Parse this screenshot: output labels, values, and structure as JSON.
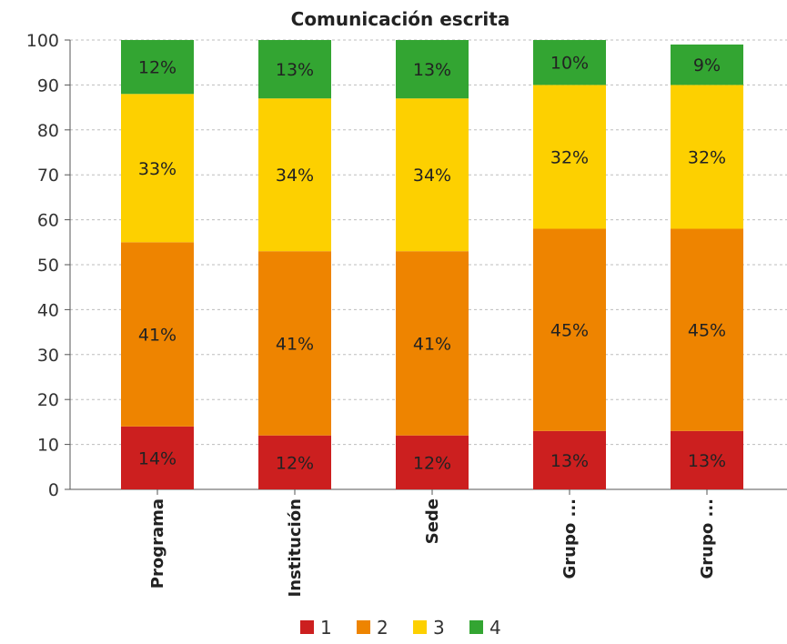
{
  "chart_data": {
    "type": "bar",
    "stacked": true,
    "title": "Comunicación escrita",
    "categories": [
      "Programa",
      "Institución",
      "Sede",
      "Grupo ...",
      "Grupo ..."
    ],
    "ylim": [
      0,
      100
    ],
    "yticks": [
      "0",
      "10",
      "20",
      "30",
      "40",
      "50",
      "60",
      "70",
      "80",
      "90",
      "100"
    ],
    "grid": true,
    "legend_position": "bottom",
    "series": [
      {
        "name": "1",
        "color": "#cc1f1f",
        "values": [
          14,
          12,
          12,
          13,
          13
        ],
        "labels": [
          "14%",
          "12%",
          "12%",
          "13%",
          "13%"
        ]
      },
      {
        "name": "2",
        "color": "#ee8400",
        "values": [
          41,
          41,
          41,
          45,
          45
        ],
        "labels": [
          "41%",
          "41%",
          "41%",
          "45%",
          "45%"
        ]
      },
      {
        "name": "3",
        "color": "#fdd000",
        "values": [
          33,
          34,
          34,
          32,
          32
        ],
        "labels": [
          "33%",
          "34%",
          "34%",
          "32%",
          "32%"
        ]
      },
      {
        "name": "4",
        "color": "#33a532",
        "values": [
          12,
          13,
          13,
          10,
          9
        ],
        "labels": [
          "12%",
          "13%",
          "13%",
          "10%",
          "9%"
        ]
      }
    ]
  }
}
